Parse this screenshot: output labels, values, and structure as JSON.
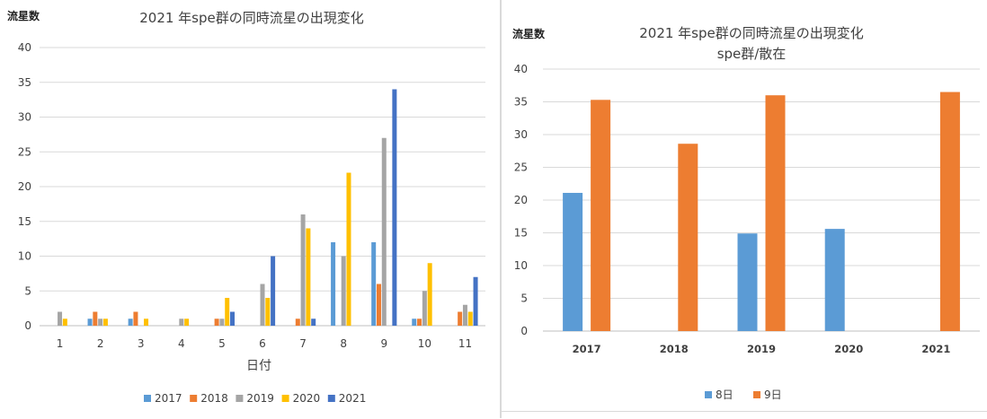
{
  "chart_data": [
    {
      "type": "bar",
      "title": "2021 年spe群の同時流星の出現変化",
      "ylabel": "流星数",
      "xlabel": "日付",
      "categories": [
        "1",
        "2",
        "3",
        "4",
        "5",
        "6",
        "7",
        "8",
        "9",
        "10",
        "11"
      ],
      "ylim": [
        0,
        40
      ],
      "yticks": [
        0,
        5,
        10,
        15,
        20,
        25,
        30,
        35,
        40
      ],
      "grid": true,
      "legend": "bottom",
      "series": [
        {
          "name": "2017",
          "color": "#5b9bd5",
          "values": [
            0,
            1,
            1,
            0,
            0,
            0,
            0,
            12,
            12,
            1,
            0
          ]
        },
        {
          "name": "2018",
          "color": "#ed7d31",
          "values": [
            0,
            2,
            2,
            0,
            1,
            0,
            1,
            0,
            6,
            1,
            2
          ]
        },
        {
          "name": "2019",
          "color": "#a5a5a5",
          "values": [
            2,
            1,
            0,
            1,
            1,
            6,
            16,
            10,
            27,
            5,
            3
          ]
        },
        {
          "name": "2020",
          "color": "#ffc000",
          "values": [
            1,
            1,
            1,
            1,
            4,
            4,
            14,
            22,
            0,
            9,
            2
          ]
        },
        {
          "name": "2021",
          "color": "#4472c4",
          "values": [
            0,
            0,
            0,
            0,
            2,
            10,
            1,
            0,
            34,
            0,
            7
          ]
        }
      ]
    },
    {
      "type": "bar",
      "title": "2021 年spe群の同時流星の出現変化",
      "subtitle": "spe群/散在",
      "ylabel": "流星数",
      "categories": [
        "2017",
        "2018",
        "2019",
        "2020",
        "2021"
      ],
      "ylim": [
        0,
        40
      ],
      "yticks": [
        0,
        5,
        10,
        15,
        20,
        25,
        30,
        35,
        40
      ],
      "grid": true,
      "legend": "bottom",
      "series": [
        {
          "name": "8日",
          "color": "#5b9bd5",
          "values": [
            21.1,
            0,
            14.9,
            15.6,
            0
          ]
        },
        {
          "name": "9日",
          "color": "#ed7d31",
          "values": [
            35.3,
            28.6,
            36.0,
            0,
            36.5
          ]
        }
      ]
    }
  ]
}
